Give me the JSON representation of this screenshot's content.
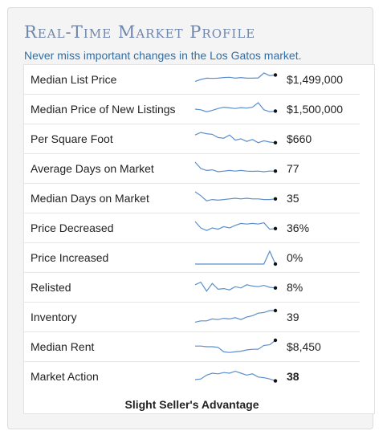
{
  "header": {
    "title": "Real-Time Market Profile",
    "subtitle": "Never miss important changes in the Los Gatos market."
  },
  "colors": {
    "line": "#5b8fcd",
    "end_dot": "#111111",
    "title": "#6f86ad",
    "subtitle": "#2f6fa7"
  },
  "metrics": [
    {
      "label": "Median List Price",
      "value": "$1,499,000",
      "trend": [
        0.35,
        0.5,
        0.6,
        0.58,
        0.6,
        0.65,
        0.67,
        0.6,
        0.65,
        0.6,
        0.6,
        0.62,
        1.0,
        0.8,
        0.85
      ]
    },
    {
      "label": "Median Price of New Listings",
      "value": "$1,500,000",
      "trend": [
        0.5,
        0.45,
        0.3,
        0.4,
        0.55,
        0.65,
        0.6,
        0.55,
        0.62,
        0.58,
        0.65,
        1.0,
        0.45,
        0.3,
        0.35
      ]
    },
    {
      "label": "Per Square Foot",
      "value": "$660",
      "trend": [
        0.8,
        1.0,
        0.9,
        0.85,
        0.6,
        0.55,
        0.8,
        0.4,
        0.5,
        0.3,
        0.45,
        0.2,
        0.35,
        0.25,
        0.2
      ]
    },
    {
      "label": "Average Days on Market",
      "value": "77",
      "trend": [
        1.0,
        0.5,
        0.35,
        0.4,
        0.25,
        0.3,
        0.35,
        0.3,
        0.35,
        0.3,
        0.28,
        0.3,
        0.25,
        0.3,
        0.3
      ]
    },
    {
      "label": "Median Days on Market",
      "value": "35",
      "trend": [
        1.0,
        0.7,
        0.3,
        0.4,
        0.35,
        0.4,
        0.45,
        0.5,
        0.45,
        0.5,
        0.45,
        0.45,
        0.4,
        0.4,
        0.45
      ]
    },
    {
      "label": "Price Decreased",
      "value": "36%",
      "trend": [
        1.0,
        0.5,
        0.3,
        0.5,
        0.4,
        0.6,
        0.5,
        0.7,
        0.85,
        0.8,
        0.85,
        0.8,
        0.9,
        0.4,
        0.45
      ]
    },
    {
      "label": "Price Increased",
      "value": "0%",
      "trend": [
        0,
        0,
        0,
        0,
        0,
        0,
        0,
        0,
        0,
        0,
        0,
        0,
        0,
        1.0,
        0
      ]
    },
    {
      "label": "Relisted",
      "value": "8%",
      "trend": [
        0.7,
        0.9,
        0.2,
        0.8,
        0.35,
        0.4,
        0.3,
        0.55,
        0.45,
        0.7,
        0.6,
        0.55,
        0.65,
        0.5,
        0.45
      ]
    },
    {
      "label": "Inventory",
      "value": "39",
      "trend": [
        0.1,
        0.2,
        0.2,
        0.35,
        0.3,
        0.4,
        0.35,
        0.45,
        0.3,
        0.5,
        0.6,
        0.8,
        0.85,
        1.0,
        1.0
      ]
    },
    {
      "label": "Median Rent",
      "value": "$8,450",
      "trend": [
        0.55,
        0.55,
        0.5,
        0.5,
        0.45,
        0.1,
        0.05,
        0.1,
        0.15,
        0.25,
        0.3,
        0.3,
        0.6,
        0.65,
        1.0
      ]
    },
    {
      "label": "Market Action",
      "value": "38",
      "trend": [
        0.25,
        0.3,
        0.6,
        0.75,
        0.7,
        0.8,
        0.75,
        0.9,
        0.75,
        0.6,
        0.7,
        0.45,
        0.4,
        0.3,
        0.15
      ]
    }
  ],
  "verdict": "Slight Seller's Advantage"
}
